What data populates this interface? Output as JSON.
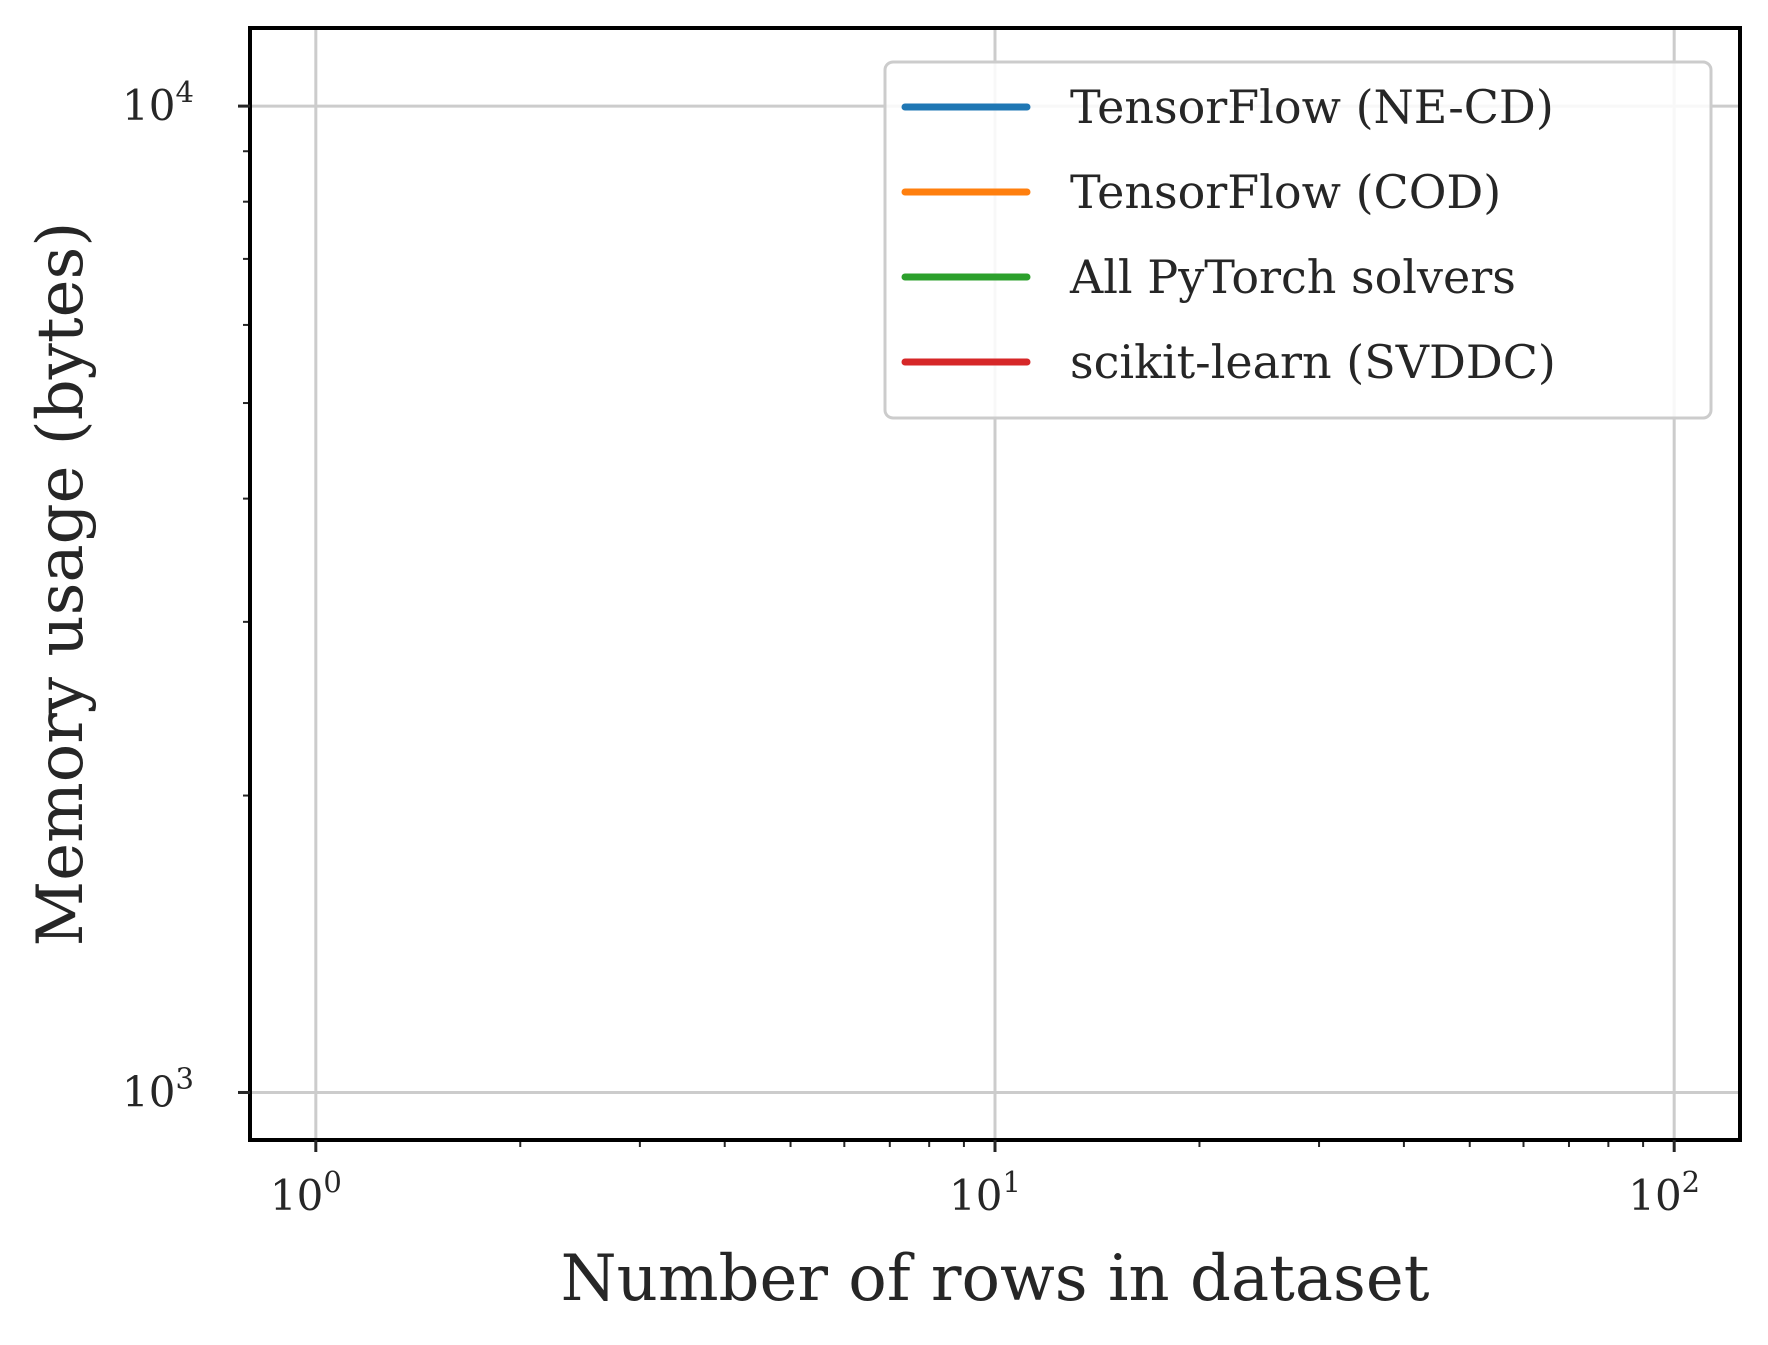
{
  "chart_data": {
    "type": "line",
    "xlabel": "Number of rows in dataset",
    "ylabel": "Memory usage (bytes)",
    "xscale": "log",
    "yscale": "log",
    "xlim": [
      0.8,
      125
    ],
    "ylim": [
      895,
      12000
    ],
    "grid": true,
    "legend_position": "top-right",
    "x_ticks": [
      {
        "value": 1,
        "base": "10",
        "exp": "0"
      },
      {
        "value": 10,
        "base": "10",
        "exp": "1"
      },
      {
        "value": 100,
        "base": "10",
        "exp": "2"
      }
    ],
    "y_ticks": [
      {
        "value": 1000,
        "base": "10",
        "exp": "3"
      },
      {
        "value": 10000,
        "base": "10",
        "exp": "4"
      }
    ],
    "series": [
      {
        "name": "TensorFlow (NE-CD)",
        "color": "#1f77b4",
        "x": [],
        "y": []
      },
      {
        "name": "TensorFlow (COD)",
        "color": "#ff7f0e",
        "x": [],
        "y": []
      },
      {
        "name": "All PyTorch solvers",
        "color": "#2ca02c",
        "x": [],
        "y": []
      },
      {
        "name": "scikit-learn (SVDDC)",
        "color": "#d62728",
        "x": [],
        "y": []
      }
    ]
  }
}
